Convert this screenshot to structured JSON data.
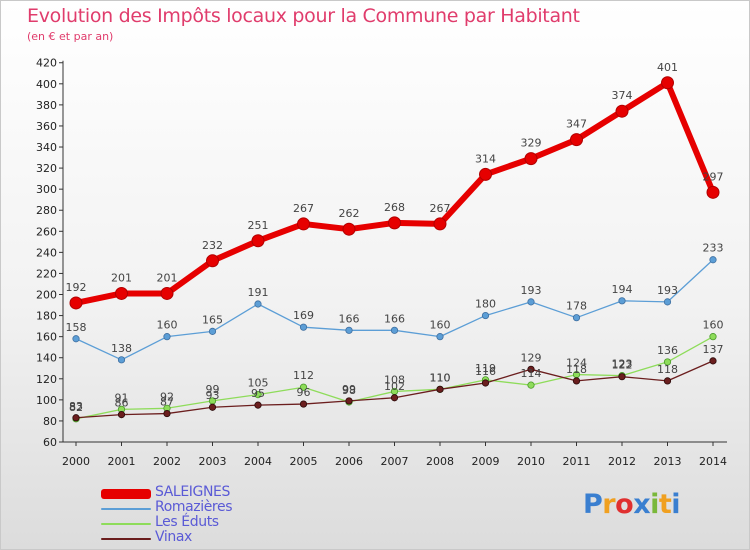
{
  "title": "Evolution des Impôts locaux pour la Commune par Habitant",
  "subtitle": "(en € et par an)",
  "logo_text": "Proxiti",
  "chart_data": {
    "type": "line",
    "x": [
      "2000",
      "2001",
      "2002",
      "2003",
      "2004",
      "2005",
      "2006",
      "2007",
      "2008",
      "2009",
      "2010",
      "2011",
      "2012",
      "2013",
      "2014"
    ],
    "ylim": [
      60,
      420
    ],
    "yticks": [
      60,
      80,
      100,
      120,
      140,
      160,
      180,
      200,
      220,
      240,
      260,
      280,
      300,
      320,
      340,
      360,
      380,
      400,
      420
    ],
    "grid": false,
    "legend_position": "bottom-left",
    "series": [
      {
        "name": "SALEIGNES",
        "color": "#e60000",
        "values": [
          192,
          201,
          201,
          232,
          251,
          267,
          262,
          268,
          267,
          314,
          329,
          347,
          374,
          401,
          297
        ],
        "labels": [
          "192",
          "201",
          "201",
          "232",
          "251",
          "267",
          "262",
          "268",
          "267",
          "314",
          "329",
          "347",
          "374",
          "401",
          "297"
        ]
      },
      {
        "name": "Romazières",
        "color": "#5c9ed6",
        "values": [
          158,
          138,
          160,
          165,
          191,
          169,
          166,
          166,
          160,
          180,
          193,
          178,
          194,
          193,
          233
        ],
        "labels": [
          "158",
          "138",
          "160",
          "165",
          "191",
          "169",
          "166",
          "166",
          "160",
          "180",
          "193",
          "178",
          "194",
          "193",
          "233"
        ]
      },
      {
        "name": "Les Éduts",
        "color": "#8edc5a",
        "values": [
          82,
          91,
          92,
          99,
          105,
          112,
          98,
          108,
          110,
          119,
          114,
          124,
          123,
          136,
          160
        ],
        "labels": [
          "82",
          "91",
          "92",
          "99",
          "105",
          "112",
          "98",
          "108",
          "110",
          "119",
          "114",
          "124",
          "123",
          "136",
          "160"
        ]
      },
      {
        "name": "Vinax",
        "color": "#6b1e1e",
        "values": [
          83,
          86,
          87,
          93,
          95,
          96,
          99,
          102,
          110,
          116,
          129,
          118,
          122,
          118,
          137
        ],
        "labels": [
          "83",
          "86",
          "87",
          "93",
          "95",
          "96",
          "99",
          "102",
          "110",
          "116",
          "129",
          "118",
          "122",
          "118",
          "137"
        ]
      }
    ]
  }
}
